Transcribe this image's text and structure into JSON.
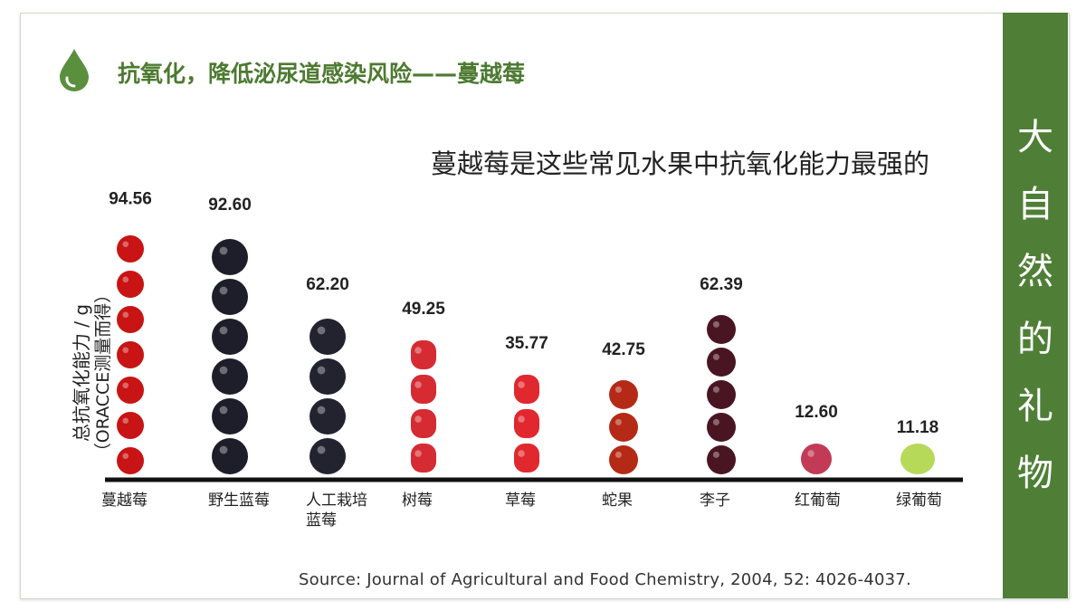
{
  "title": "抗氧化，降低泌尿道感染风险——蔓越莓",
  "side_text": [
    "大",
    "自",
    "然",
    "的",
    "礼",
    "物"
  ],
  "colors": {
    "brand_green": "#4f7f37",
    "title_green": "#4d7a31"
  },
  "icons": {
    "drop": "water-drop-icon"
  },
  "chart_data": {
    "type": "bar",
    "headline": "蔓越莓是这些常见水果中抗氧化能力最强的",
    "ylabel_line1": "总抗氧化能力 / g",
    "ylabel_line2": "（ORACCE测量而得）",
    "categories": [
      "蔓越莓",
      "野生蓝莓",
      "人工栽培蓝莓",
      "树莓",
      "草莓",
      "蛇果",
      "李子",
      "红葡萄",
      "绿葡萄"
    ],
    "category_labels": [
      [
        "蔓越莓"
      ],
      [
        "野生蓝莓"
      ],
      [
        "人工栽培",
        "蓝莓"
      ],
      [
        "树莓"
      ],
      [
        "草莓"
      ],
      [
        "蛇果"
      ],
      [
        "李子"
      ],
      [
        "红葡萄"
      ],
      [
        "绿葡萄"
      ]
    ],
    "values": [
      94.56,
      92.6,
      62.2,
      49.25,
      35.77,
      42.75,
      62.39,
      12.6,
      11.18
    ],
    "value_labels": [
      "94.56",
      "92.60",
      "62.20",
      "49.25",
      "35.77",
      "42.75",
      "62.39",
      "12.60",
      "11.18"
    ],
    "fruit_icons": [
      "cranberry",
      "wild-blueberry",
      "blueberry",
      "raspberry",
      "strawberry",
      "red-apple",
      "plum",
      "red-grape",
      "green-grape"
    ],
    "fruit_colors": [
      "#c81414",
      "#1e1e2a",
      "#23232f",
      "#d62b33",
      "#e0282e",
      "#b52a16",
      "#4a1523",
      "#c23a55",
      "#b7d95a"
    ],
    "source": "Source: Journal of Agricultural and Food Chemistry, 2004, 52: 4026-4037."
  }
}
